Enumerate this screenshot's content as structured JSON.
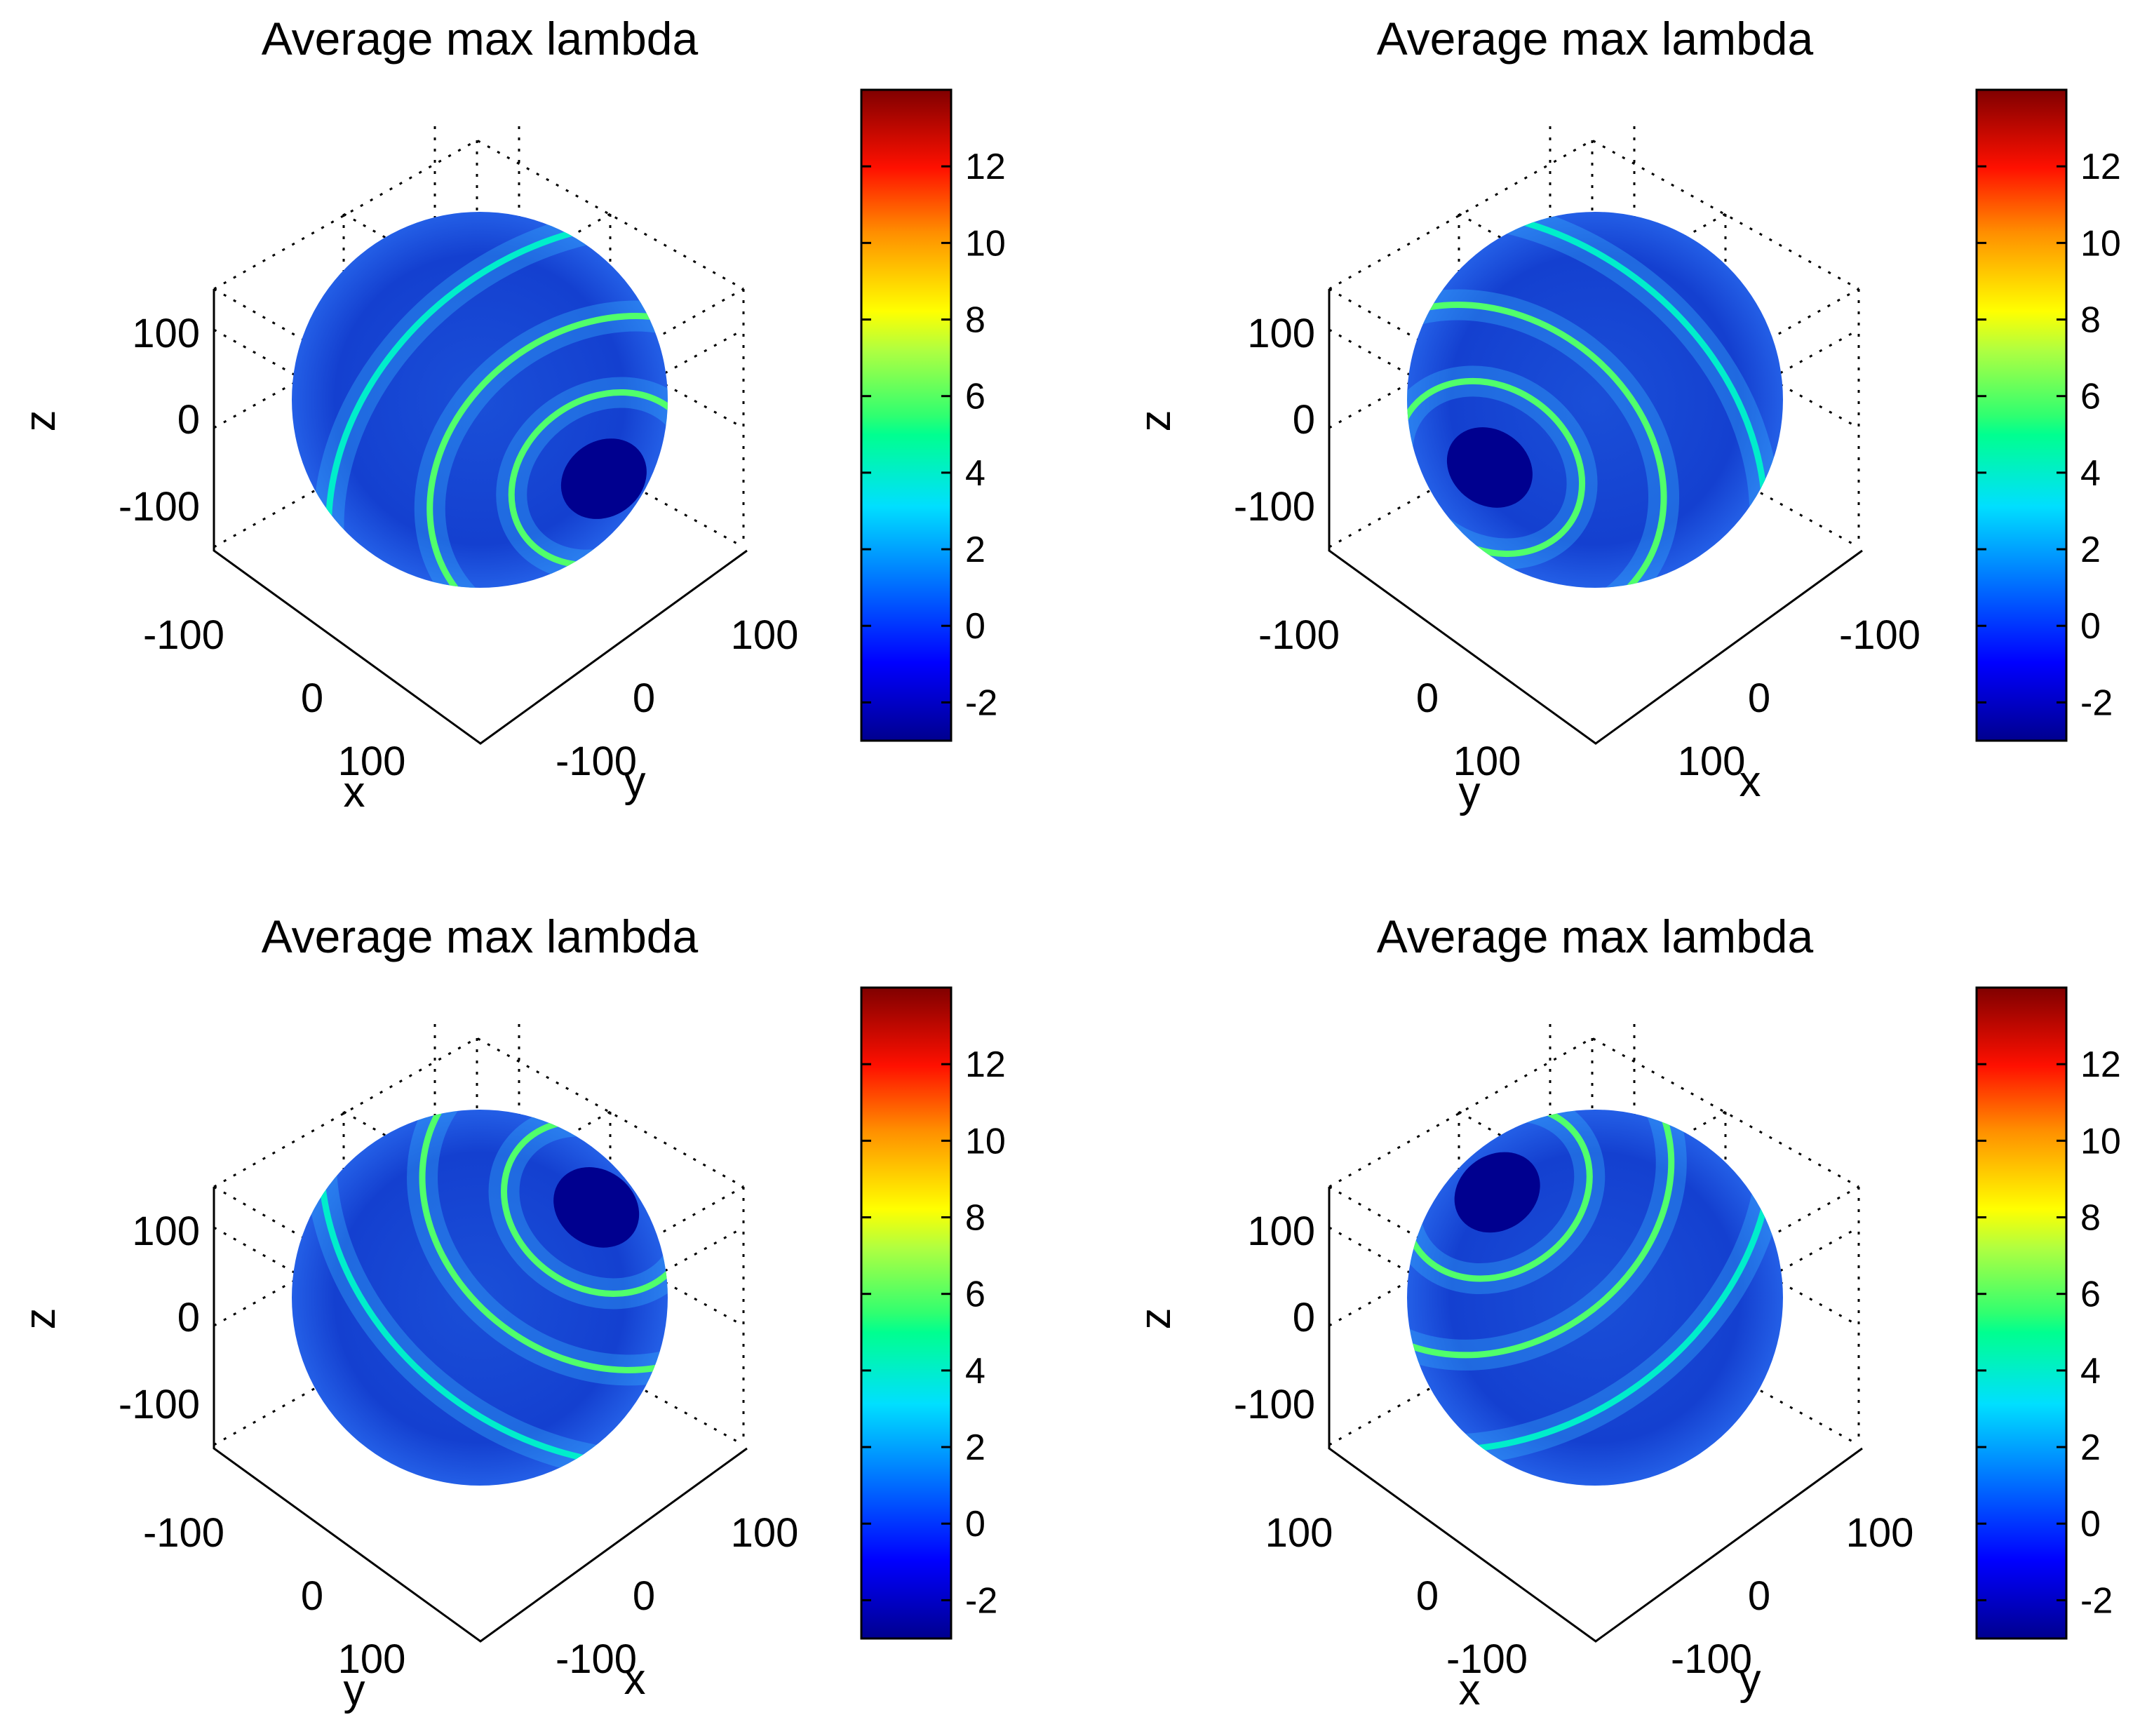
{
  "figure": {
    "layout": "2x2 grid of 3D sphere surface plots, each with colorbar"
  },
  "chart_data": [
    {
      "type": "surface3d",
      "title": "Average max lambda",
      "xlabel": "x",
      "ylabel": "y",
      "zlabel": "z",
      "z_ticks": [
        "100",
        "0",
        "-100"
      ],
      "left_axis_ticks": [
        "-100",
        "0",
        "100"
      ],
      "right_axis_ticks": [
        "100",
        "0",
        "-100"
      ],
      "colorbar_ticks": [
        "12",
        "10",
        "8",
        "6",
        "4",
        "2",
        "0",
        "-2"
      ],
      "clim": [
        -3,
        14
      ],
      "dark_spot": "lower-right",
      "bands": [
        {
          "shape": "outer-arc",
          "value": 4
        },
        {
          "shape": "middle-ring",
          "value": 6
        },
        {
          "shape": "inner-ring",
          "value": 6
        }
      ]
    },
    {
      "type": "surface3d",
      "title": "Average max lambda",
      "xlabel": "x",
      "ylabel": "y",
      "zlabel": "z",
      "z_ticks": [
        "100",
        "0",
        "-100"
      ],
      "left_axis_ticks": [
        "-100",
        "0",
        "100"
      ],
      "right_axis_ticks": [
        "-100",
        "0",
        "100"
      ],
      "colorbar_ticks": [
        "12",
        "10",
        "8",
        "6",
        "4",
        "2",
        "0",
        "-2"
      ],
      "clim": [
        -3,
        14
      ],
      "dark_spot": "lower-left",
      "bands": [
        {
          "shape": "outer-arc",
          "value": 4
        },
        {
          "shape": "middle-ring",
          "value": 6
        },
        {
          "shape": "inner-ring",
          "value": 6
        }
      ]
    },
    {
      "type": "surface3d",
      "title": "Average max lambda",
      "xlabel": "x",
      "ylabel": "y",
      "zlabel": "z",
      "z_ticks": [
        "100",
        "0",
        "-100"
      ],
      "left_axis_ticks": [
        "-100",
        "0",
        "100"
      ],
      "right_axis_ticks": [
        "100",
        "0",
        "-100"
      ],
      "colorbar_ticks": [
        "12",
        "10",
        "8",
        "6",
        "4",
        "2",
        "0",
        "-2"
      ],
      "clim": [
        -3,
        14
      ],
      "dark_spot": "upper-right",
      "bands": [
        {
          "shape": "outer-arc",
          "value": 4
        },
        {
          "shape": "middle-ring",
          "value": 6
        },
        {
          "shape": "inner-ring",
          "value": 6
        }
      ]
    },
    {
      "type": "surface3d",
      "title": "Average max lambda",
      "xlabel": "x",
      "ylabel": "y",
      "zlabel": "z",
      "z_ticks": [
        "100",
        "0",
        "-100"
      ],
      "left_axis_ticks": [
        "100",
        "0",
        "-100"
      ],
      "right_axis_ticks": [
        "100",
        "0",
        "-100"
      ],
      "colorbar_ticks": [
        "12",
        "10",
        "8",
        "6",
        "4",
        "2",
        "0",
        "-2"
      ],
      "clim": [
        -3,
        14
      ],
      "dark_spot": "upper-left",
      "bands": [
        {
          "shape": "outer-arc",
          "value": 4
        },
        {
          "shape": "middle-ring",
          "value": 6
        },
        {
          "shape": "inner-ring",
          "value": 6
        }
      ]
    }
  ]
}
